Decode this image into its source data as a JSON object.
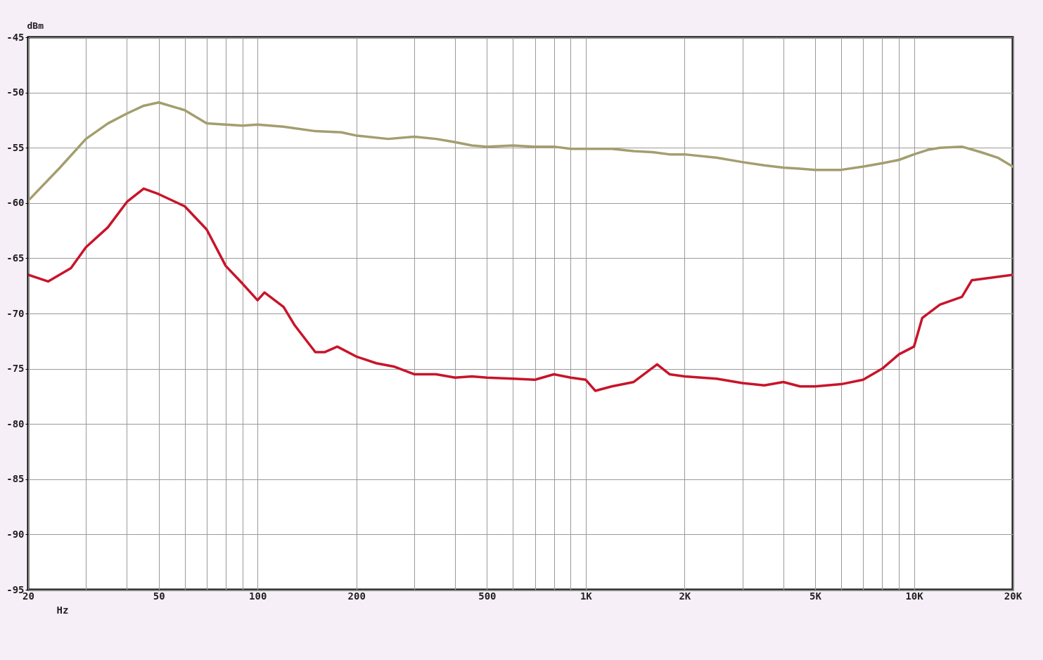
{
  "chart_data": {
    "type": "line",
    "xlabel": "Hz",
    "ylabel": "dBm",
    "log": "x",
    "grid": true,
    "line_style": "solid",
    "marker": "none",
    "xlim": [
      20,
      20000
    ],
    "ylim": [
      -95,
      -45
    ],
    "xticks": [
      20,
      {
        "value": 30,
        "label": null
      },
      {
        "value": 40,
        "label": null
      },
      50,
      {
        "value": 60,
        "label": null
      },
      {
        "value": 70,
        "label": null
      },
      {
        "value": 80,
        "label": null
      },
      {
        "value": 90,
        "label": null
      },
      100,
      200,
      {
        "value": 300,
        "label": null
      },
      {
        "value": 400,
        "label": null
      },
      500,
      {
        "value": 600,
        "label": null
      },
      {
        "value": 700,
        "label": null
      },
      {
        "value": 800,
        "label": null
      },
      {
        "value": 900,
        "label": null
      },
      {
        "value": 1000,
        "label": "1K"
      },
      {
        "value": 2000,
        "label": "2K"
      },
      {
        "value": 3000,
        "label": null
      },
      {
        "value": 4000,
        "label": null
      },
      {
        "value": 5000,
        "label": "5K"
      },
      {
        "value": 6000,
        "label": null
      },
      {
        "value": 7000,
        "label": null
      },
      {
        "value": 8000,
        "label": null
      },
      {
        "value": 9000,
        "label": null
      },
      {
        "value": 10000,
        "label": "10K"
      },
      {
        "value": 20000,
        "label": "20K"
      }
    ],
    "yticks": [
      -95,
      -90,
      -85,
      -80,
      -75,
      -70,
      -65,
      -60,
      -55,
      -50,
      -45
    ],
    "series": [
      {
        "color": "#a39e6e",
        "x": [
          20,
          25,
          30,
          35,
          40,
          45,
          50,
          60,
          70,
          80,
          90,
          100,
          120,
          150,
          180,
          200,
          250,
          300,
          350,
          400,
          450,
          500,
          600,
          700,
          800,
          900,
          1000,
          1100,
          1200,
          1400,
          1600,
          1800,
          2000,
          2500,
          3000,
          3500,
          4000,
          4500,
          5000,
          6000,
          7000,
          8000,
          9000,
          10000,
          11000,
          12000,
          14000,
          16000,
          18000,
          20000
        ],
        "values": [
          -59.8,
          -56.8,
          -54.2,
          -52.8,
          -51.9,
          -51.2,
          -50.9,
          -51.6,
          -52.8,
          -52.9,
          -53.0,
          -52.9,
          -53.1,
          -53.5,
          -53.6,
          -53.9,
          -54.2,
          -54.0,
          -54.2,
          -54.5,
          -54.8,
          -54.9,
          -54.8,
          -54.9,
          -54.9,
          -55.1,
          -55.1,
          -55.1,
          -55.1,
          -55.3,
          -55.4,
          -55.6,
          -55.6,
          -55.9,
          -56.3,
          -56.6,
          -56.8,
          -56.9,
          -57.0,
          -57.0,
          -56.7,
          -56.4,
          -56.1,
          -55.6,
          -55.2,
          -55.0,
          -54.9,
          -55.4,
          -55.9,
          -56.7
        ]
      },
      {
        "color": "#c8142a",
        "x": [
          20,
          23,
          27,
          30,
          35,
          40,
          45,
          50,
          60,
          70,
          80,
          90,
          100,
          105,
          120,
          130,
          150,
          160,
          175,
          200,
          230,
          260,
          300,
          350,
          400,
          450,
          500,
          600,
          700,
          800,
          900,
          1000,
          1070,
          1200,
          1400,
          1650,
          1800,
          2000,
          2500,
          3000,
          3500,
          4000,
          4500,
          5000,
          6000,
          7000,
          8000,
          9000,
          10000,
          10600,
          12000,
          14000,
          15000,
          20000
        ],
        "values": [
          -66.5,
          -67.1,
          -65.9,
          -64.0,
          -62.2,
          -59.9,
          -58.7,
          -59.2,
          -60.3,
          -62.4,
          -65.7,
          -67.3,
          -68.8,
          -68.1,
          -69.4,
          -71.1,
          -73.5,
          -73.5,
          -73.0,
          -73.9,
          -74.5,
          -74.8,
          -75.5,
          -75.5,
          -75.8,
          -75.7,
          -75.8,
          -75.9,
          -76.0,
          -75.5,
          -75.8,
          -76.0,
          -77.0,
          -76.6,
          -76.2,
          -74.6,
          -75.5,
          -75.7,
          -75.9,
          -76.3,
          -76.5,
          -76.2,
          -76.6,
          -76.6,
          -76.4,
          -76.0,
          -75.0,
          -73.7,
          -73.0,
          -70.4,
          -69.2,
          -68.5,
          -67.0,
          -66.5
        ]
      }
    ]
  }
}
